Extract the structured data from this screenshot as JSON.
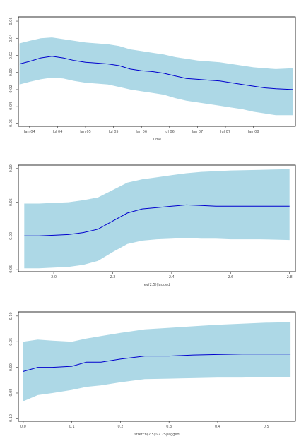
{
  "chart_data": [
    {
      "type": "area",
      "xlabel": "Time",
      "ylabel": "",
      "x_ticks": [
        "Jan 04",
        "Jul 04",
        "Jan 05",
        "Jul 05",
        "Jan 06",
        "Jul 06",
        "Jan 07",
        "Jul 07",
        "Jan 08"
      ],
      "x_tick_values": [
        2004.0,
        2004.5,
        2005.0,
        2005.5,
        2006.0,
        2006.5,
        2007.0,
        2007.5,
        2008.0
      ],
      "y_ticks": [
        "-0.06",
        "-0.04",
        "-0.02",
        "0.00",
        "0.02",
        "0.04",
        "0.06"
      ],
      "y_tick_values": [
        -0.06,
        -0.04,
        -0.02,
        0.0,
        0.02,
        0.04,
        0.06
      ],
      "xlim": [
        2003.8,
        2008.75
      ],
      "ylim": [
        -0.063,
        0.065
      ],
      "colors": {
        "band": "#add8e6",
        "line": "#0000cd"
      },
      "x": [
        2003.82,
        2004.0,
        2004.2,
        2004.4,
        2004.6,
        2004.8,
        2005.0,
        2005.2,
        2005.4,
        2005.6,
        2005.8,
        2006.0,
        2006.2,
        2006.4,
        2006.6,
        2006.8,
        2007.0,
        2007.2,
        2007.4,
        2007.6,
        2007.8,
        2008.0,
        2008.2,
        2008.4,
        2008.7
      ],
      "values": [
        0.01,
        0.013,
        0.017,
        0.019,
        0.017,
        0.014,
        0.012,
        0.011,
        0.01,
        0.008,
        0.004,
        0.002,
        0.001,
        -0.001,
        -0.004,
        -0.007,
        -0.008,
        -0.009,
        -0.01,
        -0.012,
        -0.014,
        -0.016,
        -0.018,
        -0.019,
        -0.02
      ],
      "lower": [
        -0.014,
        -0.011,
        -0.008,
        -0.006,
        -0.007,
        -0.01,
        -0.012,
        -0.013,
        -0.014,
        -0.017,
        -0.02,
        -0.022,
        -0.024,
        -0.026,
        -0.03,
        -0.033,
        -0.035,
        -0.037,
        -0.039,
        -0.041,
        -0.043,
        -0.046,
        -0.048,
        -0.05,
        -0.05
      ],
      "upper": [
        0.034,
        0.037,
        0.04,
        0.041,
        0.039,
        0.037,
        0.035,
        0.034,
        0.033,
        0.031,
        0.027,
        0.025,
        0.023,
        0.021,
        0.018,
        0.016,
        0.014,
        0.013,
        0.012,
        0.01,
        0.008,
        0.006,
        0.005,
        0.004,
        0.005
      ]
    },
    {
      "type": "area",
      "xlabel": "ev(2.5)|lagged",
      "ylabel": "",
      "x_ticks": [
        "2.0",
        "2.2",
        "2.4",
        "2.6",
        "2.8"
      ],
      "x_tick_values": [
        2.0,
        2.2,
        2.4,
        2.6,
        2.8
      ],
      "y_ticks": [
        "-0.05",
        "0.00",
        "0.05",
        "0.10"
      ],
      "y_tick_values": [
        -0.05,
        0.0,
        0.05,
        0.1
      ],
      "xlim": [
        1.88,
        2.82
      ],
      "ylim": [
        -0.053,
        0.105
      ],
      "colors": {
        "band": "#add8e6",
        "line": "#0000cd"
      },
      "x": [
        1.9,
        1.95,
        2.0,
        2.05,
        2.1,
        2.15,
        2.2,
        2.25,
        2.3,
        2.35,
        2.4,
        2.45,
        2.5,
        2.55,
        2.6,
        2.7,
        2.8
      ],
      "values": [
        0.0,
        0.0,
        0.001,
        0.002,
        0.005,
        0.01,
        0.022,
        0.034,
        0.04,
        0.042,
        0.044,
        0.046,
        0.045,
        0.044,
        0.044,
        0.044,
        0.044
      ],
      "lower": [
        -0.048,
        -0.048,
        -0.047,
        -0.046,
        -0.043,
        -0.037,
        -0.024,
        -0.012,
        -0.007,
        -0.005,
        -0.004,
        -0.003,
        -0.004,
        -0.004,
        -0.005,
        -0.005,
        -0.006
      ],
      "upper": [
        0.048,
        0.048,
        0.049,
        0.05,
        0.053,
        0.057,
        0.068,
        0.079,
        0.084,
        0.087,
        0.09,
        0.093,
        0.095,
        0.096,
        0.097,
        0.098,
        0.099
      ]
    },
    {
      "type": "area",
      "xlabel": "stretch(2.5)~2.25|lagged",
      "ylabel": "",
      "x_ticks": [
        "0.0",
        "0.1",
        "0.2",
        "0.3",
        "0.4",
        "0.5"
      ],
      "x_tick_values": [
        0.0,
        0.1,
        0.2,
        0.3,
        0.4,
        0.5
      ],
      "y_ticks": [
        "-0.10",
        "-0.05",
        "0.00",
        "0.05",
        "0.10"
      ],
      "y_tick_values": [
        -0.1,
        -0.05,
        0.0,
        0.05,
        0.1
      ],
      "xlim": [
        -0.01,
        0.56
      ],
      "ylim": [
        -0.105,
        0.108
      ],
      "colors": {
        "band": "#add8e6",
        "line": "#0000cd"
      },
      "x": [
        0.0,
        0.03,
        0.06,
        0.1,
        0.13,
        0.16,
        0.2,
        0.25,
        0.3,
        0.35,
        0.4,
        0.45,
        0.5,
        0.55
      ],
      "values": [
        -0.008,
        0.0,
        0.0,
        0.002,
        0.01,
        0.01,
        0.016,
        0.022,
        0.022,
        0.024,
        0.025,
        0.026,
        0.026,
        0.026
      ],
      "lower": [
        -0.066,
        -0.054,
        -0.05,
        -0.044,
        -0.038,
        -0.035,
        -0.029,
        -0.023,
        -0.022,
        -0.021,
        -0.02,
        -0.02,
        -0.019,
        -0.019
      ],
      "upper": [
        0.05,
        0.054,
        0.052,
        0.05,
        0.056,
        0.061,
        0.067,
        0.074,
        0.077,
        0.08,
        0.083,
        0.085,
        0.087,
        0.088
      ]
    }
  ]
}
